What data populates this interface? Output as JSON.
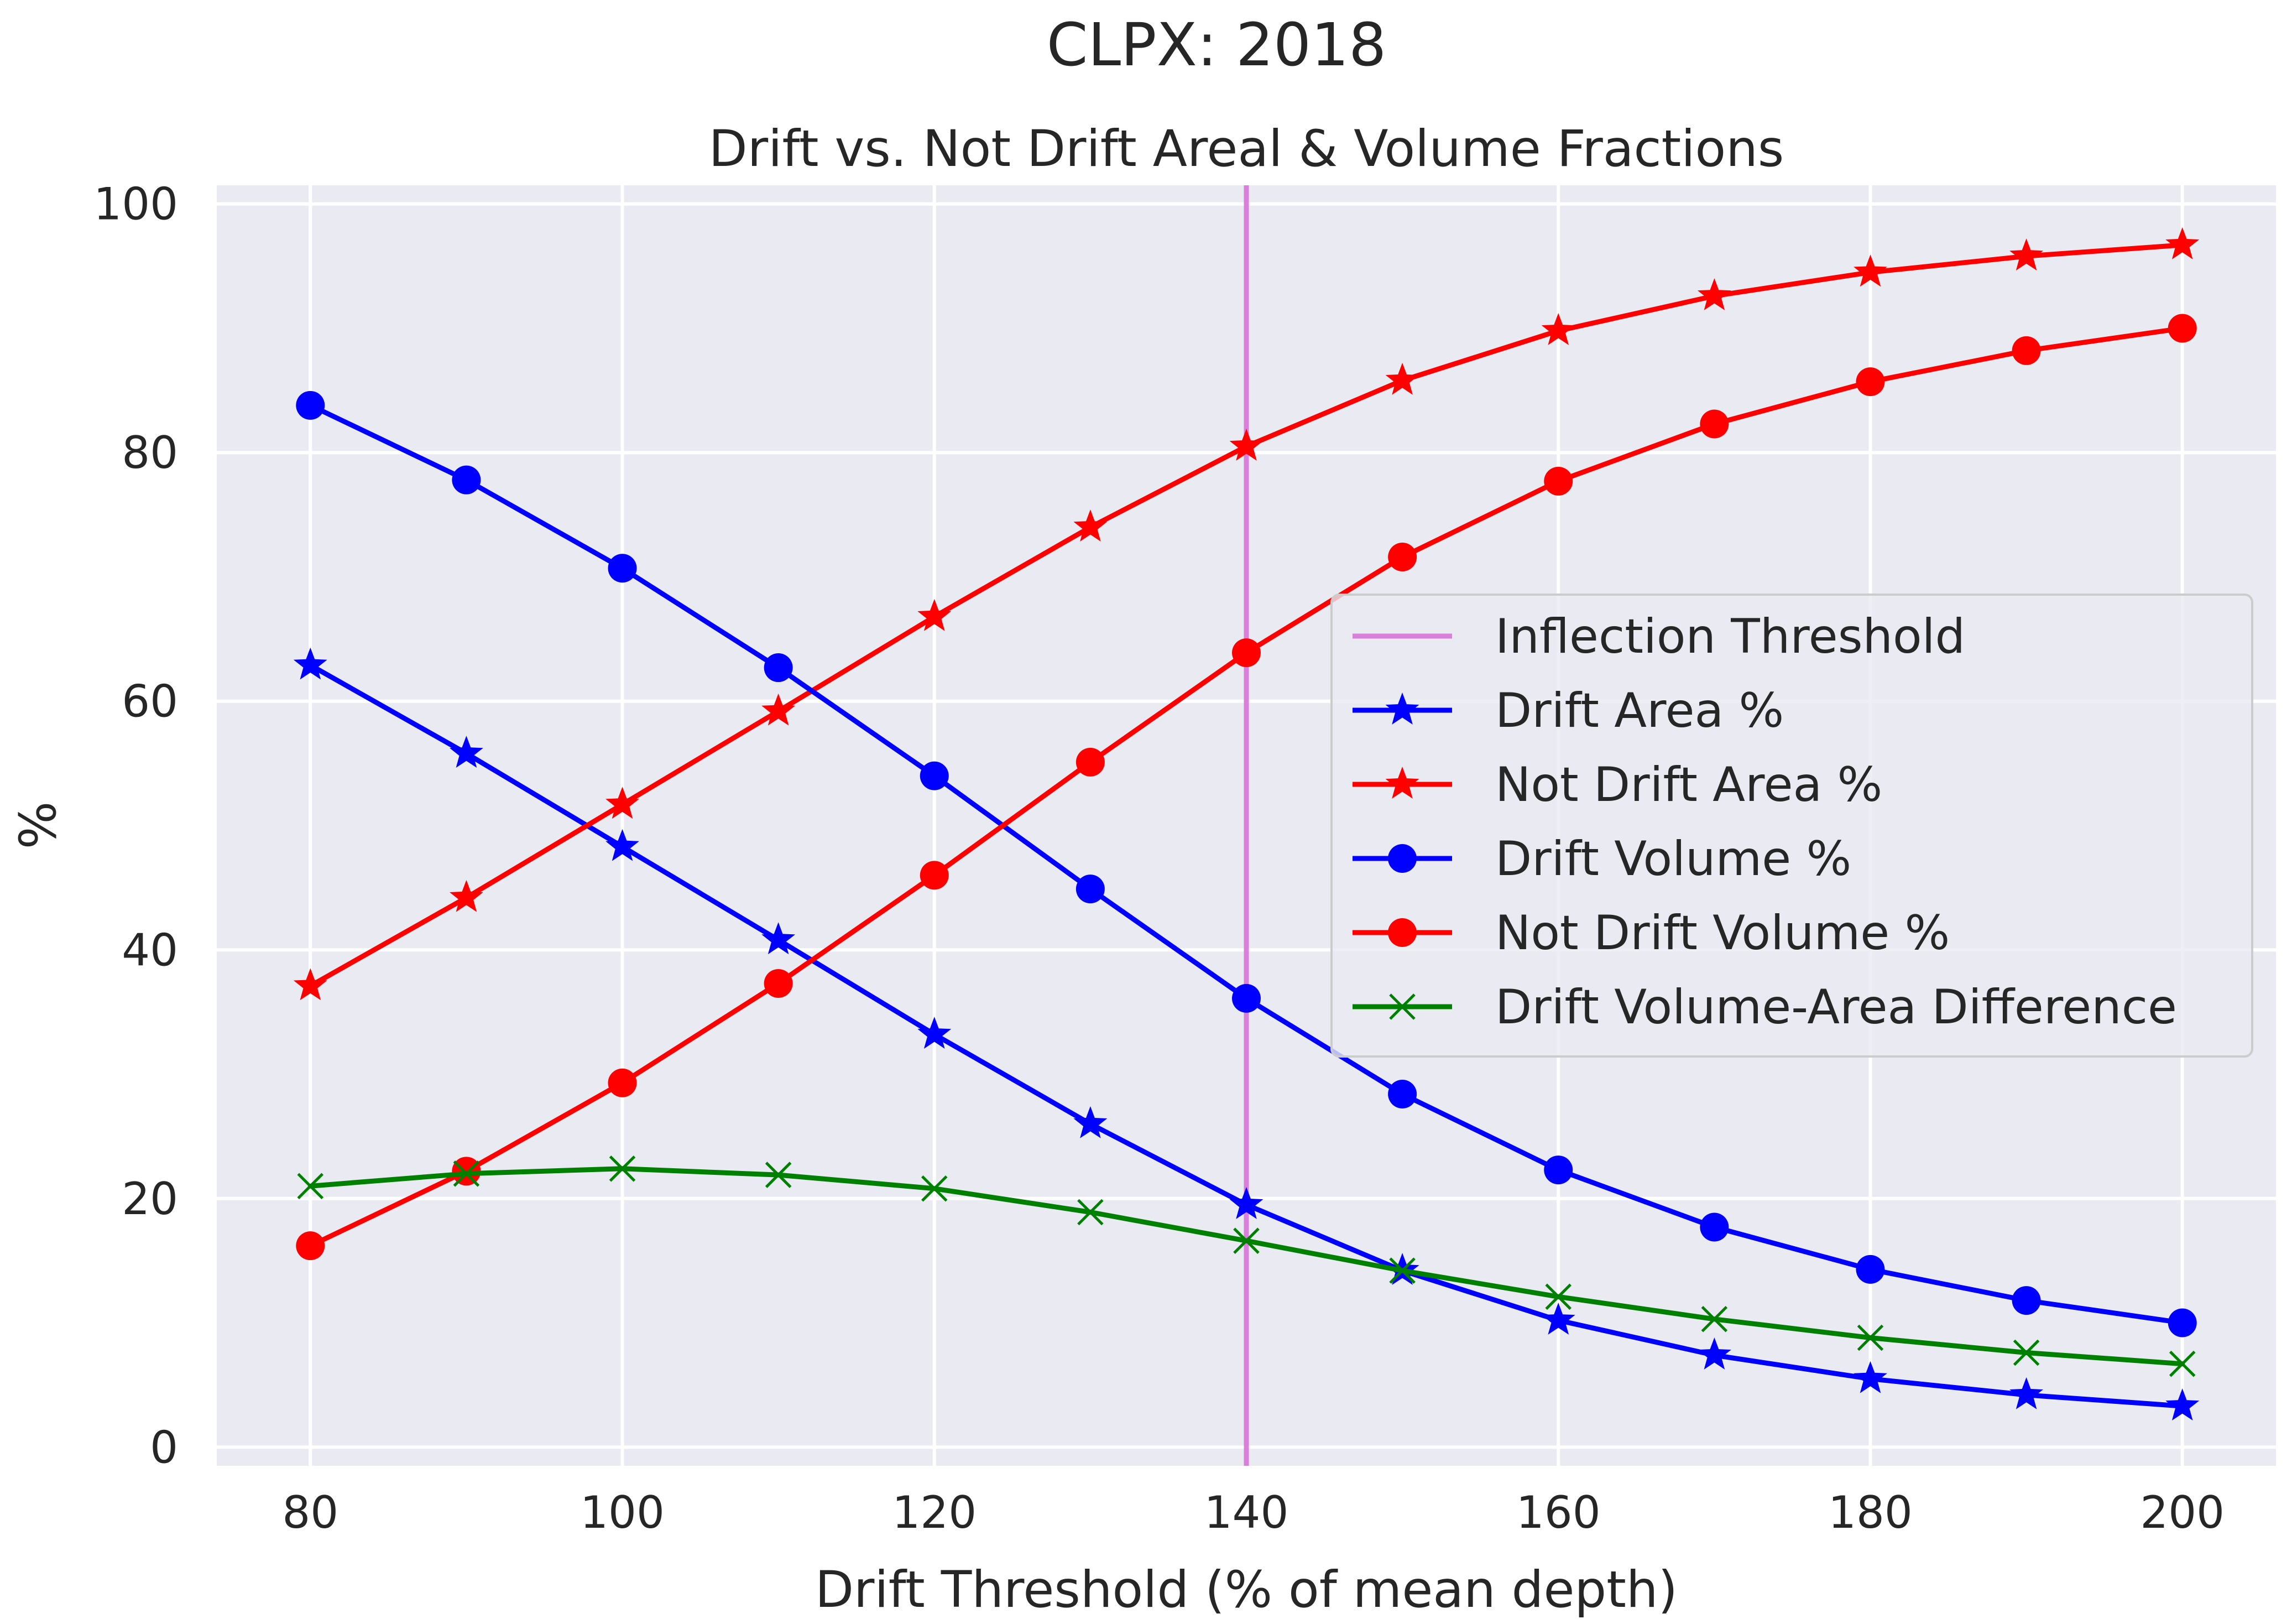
{
  "chart_data": {
    "type": "line",
    "suptitle": "CLPX: 2018",
    "title": "Drift vs. Not Drift Areal & Volume Fractions",
    "xlabel": "Drift Threshold (% of mean depth)",
    "ylabel": "%",
    "xlim": [
      74,
      206
    ],
    "ylim": [
      -1.5,
      101.5
    ],
    "xticks": [
      80,
      100,
      120,
      140,
      160,
      180,
      200
    ],
    "yticks": [
      0,
      20,
      40,
      60,
      80,
      100
    ],
    "grid": true,
    "legend_position": "center-right",
    "x": [
      80,
      90,
      100,
      110,
      120,
      130,
      140,
      150,
      160,
      170,
      180,
      190,
      200
    ],
    "vline": {
      "name": "Inflection Threshold",
      "x": 140,
      "color": "#da7fdb"
    },
    "series": [
      {
        "name": "Drift Area %",
        "color": "#0000ff",
        "marker": "star",
        "values": [
          62.9,
          55.8,
          48.3,
          40.8,
          33.2,
          26.0,
          19.5,
          14.2,
          10.2,
          7.4,
          5.5,
          4.2,
          3.3
        ]
      },
      {
        "name": "Not Drift Area %",
        "color": "#ff0000",
        "marker": "star",
        "values": [
          37.1,
          44.2,
          51.7,
          59.2,
          66.8,
          74.0,
          80.5,
          85.8,
          89.8,
          92.6,
          94.5,
          95.8,
          96.7
        ]
      },
      {
        "name": "Drift Volume %",
        "color": "#0000ff",
        "marker": "circle",
        "values": [
          83.8,
          77.8,
          70.7,
          62.7,
          54.0,
          44.9,
          36.1,
          28.4,
          22.3,
          17.7,
          14.3,
          11.8,
          10.0
        ]
      },
      {
        "name": "Not Drift Volume %",
        "color": "#ff0000",
        "marker": "circle",
        "values": [
          16.2,
          22.2,
          29.3,
          37.3,
          46.0,
          55.1,
          63.9,
          71.6,
          77.7,
          82.3,
          85.7,
          88.2,
          90.0
        ]
      },
      {
        "name": "Drift Volume-Area Difference",
        "color": "#008000",
        "marker": "x",
        "values": [
          21.0,
          22.0,
          22.4,
          21.9,
          20.8,
          18.9,
          16.6,
          14.2,
          12.1,
          10.3,
          8.8,
          7.6,
          6.7
        ]
      }
    ]
  }
}
